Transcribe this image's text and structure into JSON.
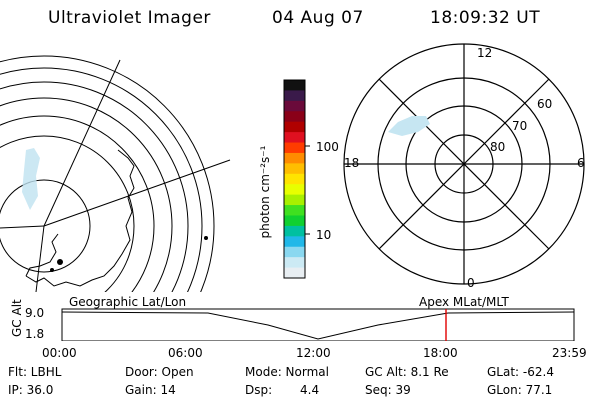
{
  "header": {
    "title": "Ultraviolet Imager",
    "date": "04 Aug 07",
    "time": "18:09:32 UT"
  },
  "colorbar": {
    "unit_label": "photon cm⁻²s⁻¹",
    "tick_labels": [
      "100",
      "10"
    ],
    "colors": [
      "#111111",
      "#3a1a4a",
      "#6a0a3a",
      "#8a0018",
      "#b00000",
      "#e01020",
      "#ff3c00",
      "#ff8c00",
      "#ffbe00",
      "#ffe400",
      "#e8ff00",
      "#a8f000",
      "#40e020",
      "#10d030",
      "#00c0a0",
      "#20b8e8",
      "#8ad8f0",
      "#cceaf4",
      "#e8eef2"
    ]
  },
  "polar_plot": {
    "mlt_labels": [
      "12",
      "18",
      "6",
      "0"
    ],
    "mlat_labels": [
      "60",
      "70",
      "80"
    ]
  },
  "timeline": {
    "y_axis_title": "GC Alt",
    "y_ticks": [
      "9.0",
      "1.8"
    ],
    "left_label": "Geographic Lat/Lon",
    "right_label": "Apex MLat/MLT",
    "x_ticks": [
      "00:00",
      "06:00",
      "12:00",
      "18:00",
      "23:59"
    ],
    "marker_color": "#e00000"
  },
  "status": {
    "flt": "Flt: LBHL",
    "ip": "IP: 36.0",
    "door": "Door: Open",
    "gain": "Gain: 14",
    "mode": "Mode: Normal",
    "dsp": "Dsp:",
    "dsp_value": "4.4",
    "gc_alt": "GC Alt: 8.1 Re",
    "seq": "Seq: 39",
    "glat": "GLat: -62.4",
    "glon": "GLon: 77.1"
  }
}
